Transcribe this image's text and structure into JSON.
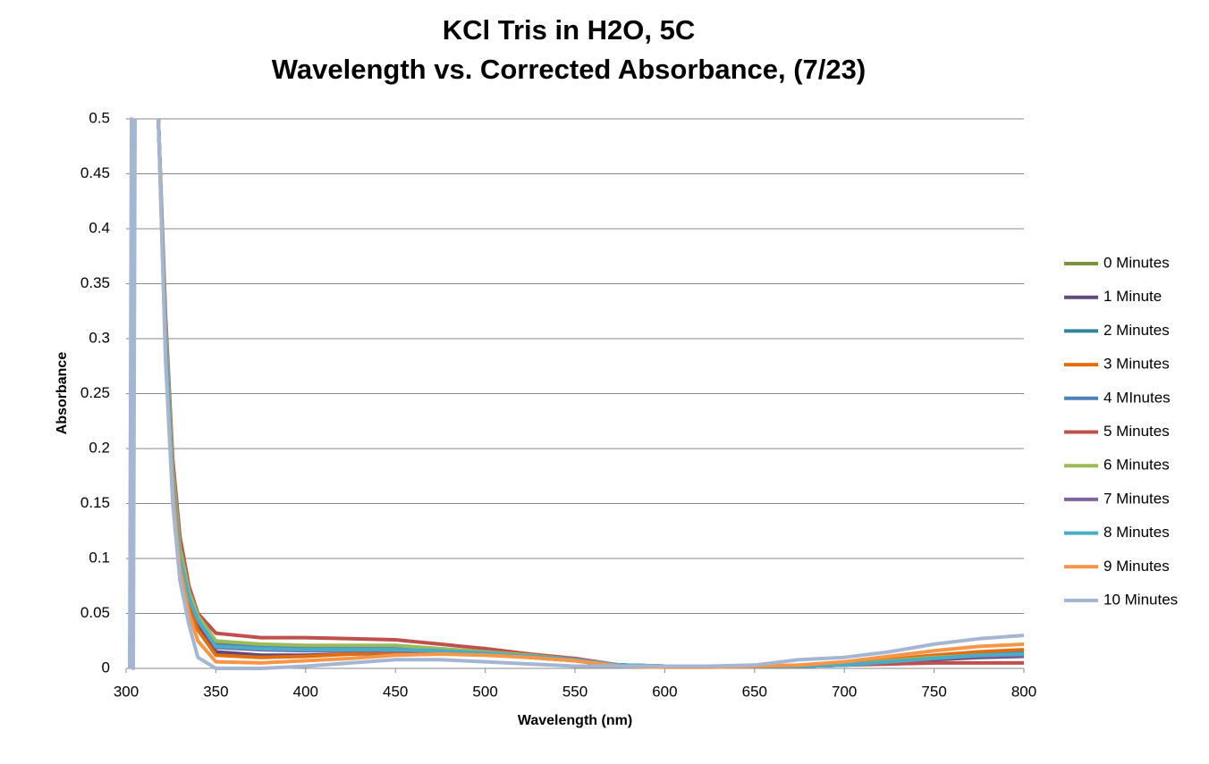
{
  "chart_data": {
    "type": "line",
    "title": "KCl Tris in H2O, 5C",
    "subtitle": "Wavelength vs. Corrected Absorbance, (7/23)",
    "x_label": "Wavelength (nm)",
    "y_label": "Absorbance",
    "x": [
      302,
      303,
      304,
      305,
      310,
      318,
      322,
      326,
      330,
      335,
      340,
      350,
      375,
      400,
      425,
      450,
      475,
      500,
      525,
      550,
      575,
      600,
      625,
      650,
      675,
      700,
      725,
      750,
      775,
      800
    ],
    "xlim": [
      300,
      800
    ],
    "xticks": [
      300,
      350,
      400,
      450,
      500,
      550,
      600,
      650,
      700,
      750,
      800
    ],
    "ylim": [
      0,
      0.5
    ],
    "yticks": [
      0,
      0.05,
      0.1,
      0.15,
      0.2,
      0.25,
      0.3,
      0.35,
      0.4,
      0.45,
      0.5
    ],
    "grid": true,
    "legend": "right",
    "series": [
      {
        "name": "0 Minutes",
        "color": "#77933c",
        "values": [
          null,
          null,
          null,
          null,
          null,
          0.5,
          0.3,
          0.17,
          0.1,
          0.065,
          0.045,
          0.022,
          0.02,
          0.018,
          0.018,
          0.018,
          0.016,
          0.014,
          0.012,
          0.008,
          0.003,
          0.002,
          0.002,
          0.002,
          0.002,
          0.003,
          0.006,
          0.009,
          0.011,
          0.012
        ]
      },
      {
        "name": "1 Minute",
        "color": "#604a7b",
        "values": [
          null,
          null,
          null,
          null,
          null,
          0.5,
          0.3,
          0.17,
          0.1,
          0.06,
          0.04,
          0.015,
          0.012,
          0.012,
          0.013,
          0.014,
          0.014,
          0.013,
          0.01,
          0.007,
          0.002,
          0.002,
          0.002,
          0.002,
          0.002,
          0.003,
          0.005,
          0.008,
          0.01,
          0.011
        ]
      },
      {
        "name": "2 Minutes",
        "color": "#31859c",
        "values": [
          null,
          null,
          null,
          null,
          null,
          0.5,
          0.3,
          0.17,
          0.1,
          0.065,
          0.045,
          0.02,
          0.018,
          0.017,
          0.017,
          0.017,
          0.016,
          0.014,
          0.011,
          0.008,
          0.003,
          0.002,
          0.002,
          0.002,
          0.002,
          0.003,
          0.006,
          0.009,
          0.011,
          0.013
        ]
      },
      {
        "name": "3 Minutes",
        "color": "#e46c0a",
        "values": [
          null,
          null,
          null,
          null,
          null,
          0.5,
          0.29,
          0.16,
          0.095,
          0.055,
          0.035,
          0.012,
          0.01,
          0.011,
          0.013,
          0.015,
          0.015,
          0.013,
          0.01,
          0.007,
          0.002,
          0.002,
          0.002,
          0.002,
          0.002,
          0.004,
          0.008,
          0.012,
          0.015,
          0.017
        ]
      },
      {
        "name": "4 MInutes",
        "color": "#4f81bd",
        "values": [
          null,
          null,
          null,
          null,
          null,
          0.5,
          0.3,
          0.17,
          0.1,
          0.065,
          0.045,
          0.021,
          0.02,
          0.019,
          0.019,
          0.019,
          0.017,
          0.015,
          0.012,
          0.008,
          0.003,
          0.002,
          0.002,
          0.002,
          0.002,
          0.003,
          0.006,
          0.01,
          0.012,
          0.014
        ]
      },
      {
        "name": "5 Minutes",
        "color": "#c0504d",
        "values": [
          null,
          null,
          null,
          null,
          null,
          0.5,
          0.32,
          0.19,
          0.12,
          0.075,
          0.05,
          0.032,
          0.028,
          0.028,
          0.027,
          0.026,
          0.022,
          0.018,
          0.013,
          0.009,
          0.003,
          0.002,
          0.002,
          0.002,
          0.002,
          0.003,
          0.004,
          0.005,
          0.005,
          0.005
        ]
      },
      {
        "name": "6 Minutes",
        "color": "#9bbb59",
        "values": [
          null,
          null,
          null,
          null,
          null,
          0.5,
          0.31,
          0.18,
          0.11,
          0.07,
          0.048,
          0.025,
          0.022,
          0.021,
          0.021,
          0.021,
          0.018,
          0.015,
          0.012,
          0.008,
          0.003,
          0.002,
          0.002,
          0.002,
          0.002,
          0.003,
          0.007,
          0.01,
          0.012,
          0.012
        ]
      },
      {
        "name": "7 Minutes",
        "color": "#8064a2",
        "values": [
          null,
          null,
          null,
          null,
          null,
          0.5,
          0.3,
          0.17,
          0.1,
          0.063,
          0.043,
          0.019,
          0.017,
          0.016,
          0.016,
          0.016,
          0.015,
          0.013,
          0.011,
          0.008,
          0.003,
          0.002,
          0.002,
          0.002,
          0.002,
          0.003,
          0.006,
          0.009,
          0.011,
          0.012
        ]
      },
      {
        "name": "8 Minutes",
        "color": "#4bacc6",
        "values": [
          null,
          null,
          null,
          null,
          null,
          0.5,
          0.3,
          0.17,
          0.1,
          0.064,
          0.044,
          0.02,
          0.018,
          0.017,
          0.017,
          0.017,
          0.016,
          0.014,
          0.011,
          0.008,
          0.003,
          0.002,
          0.002,
          0.002,
          0.002,
          0.003,
          0.006,
          0.009,
          0.012,
          0.013
        ]
      },
      {
        "name": "9 Minutes",
        "color": "#f79646",
        "values": [
          null,
          null,
          null,
          null,
          null,
          0.5,
          0.28,
          0.16,
          0.09,
          0.05,
          0.025,
          0.006,
          0.005,
          0.007,
          0.009,
          0.012,
          0.013,
          0.012,
          0.01,
          0.007,
          0.002,
          0.001,
          0.001,
          0.002,
          0.003,
          0.006,
          0.011,
          0.016,
          0.02,
          0.022
        ]
      },
      {
        "name": "10 Minutes",
        "color": "#a5b6d3",
        "values": [
          0,
          0.5,
          0,
          0.5,
          null,
          0.5,
          0.28,
          0.15,
          0.08,
          0.04,
          0.01,
          0,
          0,
          0.002,
          0.005,
          0.008,
          0.008,
          0.006,
          0.004,
          0.002,
          0.002,
          0.002,
          0.002,
          0.003,
          0.008,
          0.01,
          0.015,
          0.022,
          0.027,
          0.03
        ]
      }
    ]
  }
}
